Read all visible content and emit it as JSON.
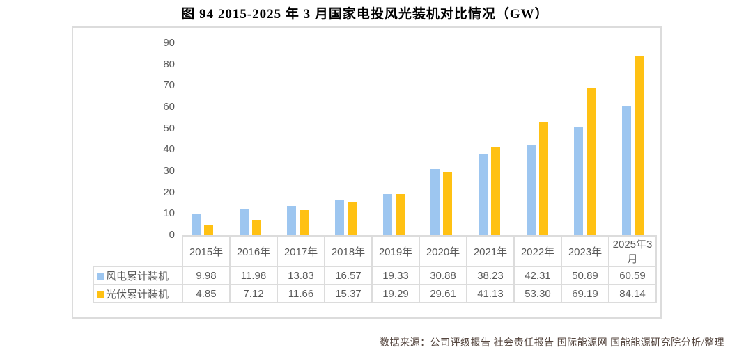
{
  "title": "图 94 2015-2025 年 3 月国家电投风光装机对比情况（GW）",
  "footer": "数据来源：公司评级报告 社会责任报告 国际能源网 国能能源研究院分析/整理",
  "colors": {
    "wind": "#9DC6F0",
    "solar": "#FFC113",
    "grid_border": "#DCDCDC",
    "axis_text": "#595959",
    "title_text": "#000000",
    "source_text": "#54453E"
  },
  "chart_data": {
    "type": "bar",
    "categories": [
      "2015年",
      "2016年",
      "2017年",
      "2018年",
      "2019年",
      "2020年",
      "2021年",
      "2022年",
      "2023年",
      "2025年3月"
    ],
    "series": [
      {
        "name": "风电累计装机",
        "color_key": "wind",
        "values": [
          9.98,
          11.98,
          13.83,
          16.57,
          19.33,
          30.88,
          38.23,
          42.31,
          50.89,
          60.59
        ]
      },
      {
        "name": "光伏累计装机",
        "color_key": "solar",
        "values": [
          4.85,
          7.12,
          11.66,
          15.37,
          19.29,
          29.61,
          41.13,
          53.3,
          69.19,
          84.14
        ]
      }
    ],
    "title": "图 94 2015-2025 年 3 月国家电投风光装机对比情况（GW）",
    "xlabel": "",
    "ylabel": "",
    "ylim": [
      0,
      90
    ],
    "ytick_step": 10,
    "grid": false,
    "legend_position": "table-rows",
    "value_decimals": 2
  }
}
